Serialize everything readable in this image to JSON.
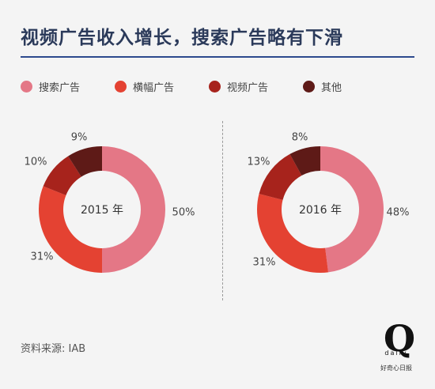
{
  "title": "视频广告收入增长，搜索广告略有下滑",
  "legend": [
    {
      "label": "搜索广告",
      "color": "#e47786"
    },
    {
      "label": "横幅广告",
      "color": "#e44232"
    },
    {
      "label": "视频广告",
      "color": "#a7231c"
    },
    {
      "label": "其他",
      "color": "#5e1a17"
    }
  ],
  "chart_data": [
    {
      "type": "pie",
      "center_label": "2015 年",
      "categories": [
        "搜索广告",
        "横幅广告",
        "视频广告",
        "其他"
      ],
      "values": [
        50,
        31,
        10,
        9
      ],
      "value_labels": [
        "50%",
        "31%",
        "10%",
        "9%"
      ],
      "colors": [
        "#e47786",
        "#e44232",
        "#a7231c",
        "#5e1a17"
      ]
    },
    {
      "type": "pie",
      "center_label": "2016 年",
      "categories": [
        "搜索广告",
        "横幅广告",
        "视频广告",
        "其他"
      ],
      "values": [
        48,
        31,
        13,
        8
      ],
      "value_labels": [
        "48%",
        "31%",
        "13%",
        "8%"
      ],
      "colors": [
        "#e47786",
        "#e44232",
        "#a7231c",
        "#5e1a17"
      ]
    }
  ],
  "source": "资料来源: IAB",
  "logo": {
    "mark": "Q",
    "word": "daily",
    "sub": "好奇心日报"
  }
}
